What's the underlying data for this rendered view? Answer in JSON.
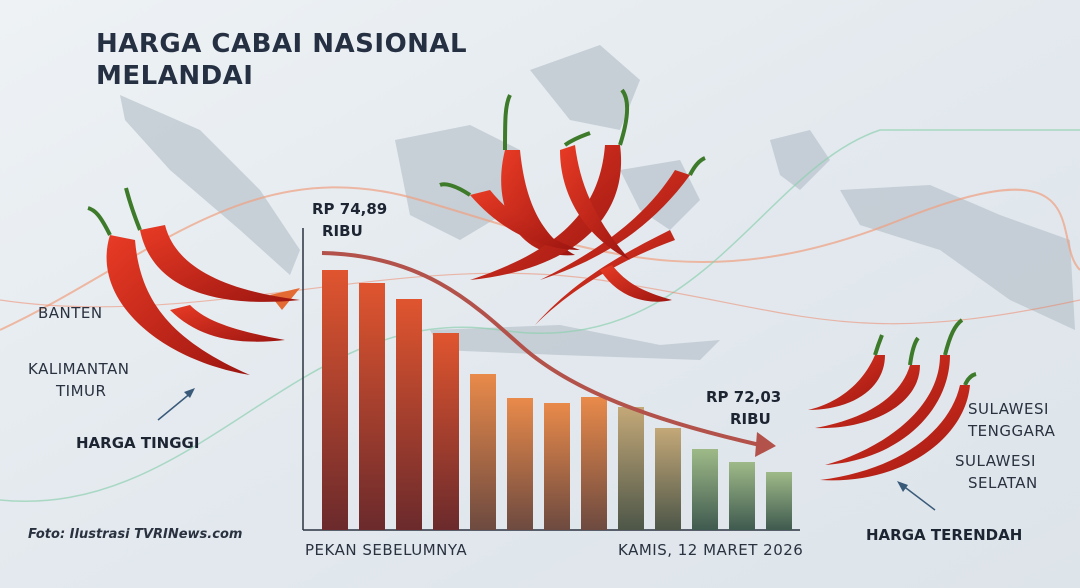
{
  "title": [
    "HARGA CABAI NASIONAL",
    "MELANDAI"
  ],
  "price_start": {
    "amount": "RP 74,89",
    "unit": "RIBU"
  },
  "price_end": {
    "amount": "RP 72,03",
    "unit": "RIBU"
  },
  "high": {
    "regions": [
      [
        "BANTEN"
      ],
      [
        "KALIMANTAN",
        "TIMUR"
      ]
    ],
    "label": "HARGA TINGGI"
  },
  "low": {
    "regions": [
      [
        "SULAWESI",
        "TENGGARA"
      ],
      [
        "SULAWESI",
        "SELATAN"
      ]
    ],
    "label": "HARGA TERENDAH"
  },
  "axis": {
    "start": "PEKAN SEBELUMNYA",
    "end": "KAMIS, 12 MARET 2026"
  },
  "credit": "Foto: Ilustrasi TVRINews.com"
}
